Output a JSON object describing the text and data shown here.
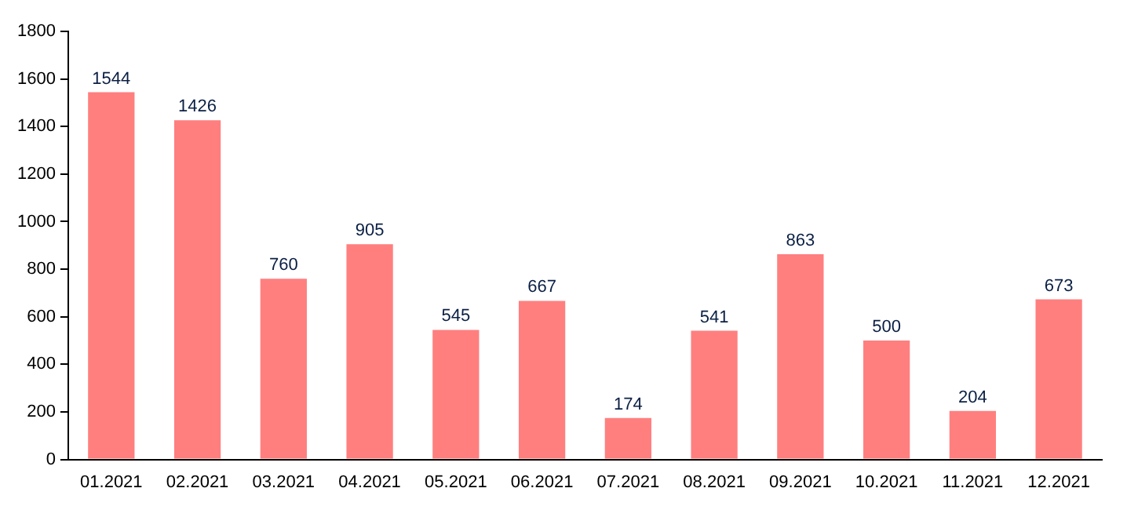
{
  "chart_data": {
    "type": "bar",
    "categories": [
      "01.2021",
      "02.2021",
      "03.2021",
      "04.2021",
      "05.2021",
      "06.2021",
      "07.2021",
      "08.2021",
      "09.2021",
      "10.2021",
      "11.2021",
      "12.2021"
    ],
    "values": [
      1544,
      1426,
      760,
      905,
      545,
      667,
      174,
      541,
      863,
      500,
      204,
      673
    ],
    "color": "#ff7f7f",
    "ylim": [
      0,
      1800
    ],
    "yticks": [
      0,
      200,
      400,
      600,
      800,
      1000,
      1200,
      1400,
      1600,
      1800
    ],
    "grid": false,
    "legend": false,
    "data_labels": true
  }
}
